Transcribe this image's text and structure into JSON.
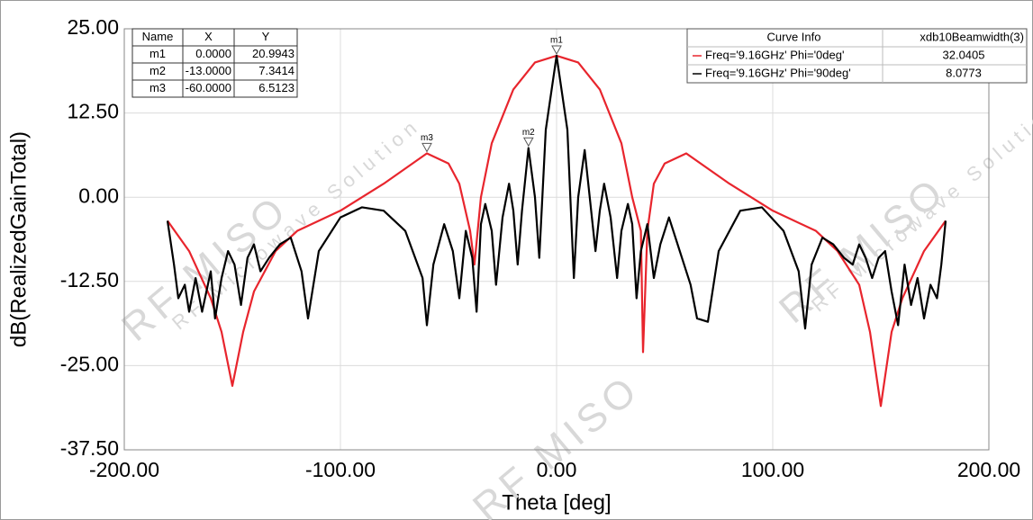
{
  "chart_data": {
    "type": "line",
    "xlabel": "Theta [deg]",
    "ylabel": "dB(RealizedGainTotal)",
    "xlim": [
      -200,
      200
    ],
    "ylim": [
      -37.5,
      25
    ],
    "xticks": [
      {
        "value": -200,
        "label": "-200.00"
      },
      {
        "value": -100,
        "label": "-100.00"
      },
      {
        "value": 0,
        "label": "0.00"
      },
      {
        "value": 100,
        "label": "100.00"
      },
      {
        "value": 200,
        "label": "200.00"
      }
    ],
    "yticks": [
      {
        "value": -37.5,
        "label": "-37.50"
      },
      {
        "value": -25,
        "label": "-25.00"
      },
      {
        "value": -12.5,
        "label": "-12.50"
      },
      {
        "value": 0,
        "label": "0.00"
      },
      {
        "value": 12.5,
        "label": "12.50"
      },
      {
        "value": 25,
        "label": "25.00"
      }
    ],
    "grid": true,
    "legend_header": [
      "Curve Info",
      "xdb10Beamwidth(3)"
    ],
    "series": [
      {
        "name": "Freq='9.16GHz' Phi='0deg'",
        "color": "#e8252d",
        "beamwidth": 32.0405,
        "x": [
          -180,
          -170,
          -160,
          -155,
          -150,
          -145,
          -140,
          -130,
          -120,
          -100,
          -80,
          -60,
          -50,
          -45,
          -40,
          -38,
          -35,
          -30,
          -20,
          -10,
          0,
          10,
          20,
          30,
          35,
          39,
          40,
          42,
          45,
          50,
          60,
          80,
          100,
          120,
          130,
          140,
          145,
          150,
          155,
          160,
          170,
          180
        ],
        "values": [
          -3.5,
          -8,
          -15,
          -20,
          -28,
          -20,
          -14,
          -8,
          -5,
          -2,
          2,
          6.5,
          5,
          2,
          -5,
          -10,
          0,
          8,
          16,
          20,
          21,
          20,
          16,
          8,
          0,
          -5,
          -23,
          -5,
          2,
          5,
          6.5,
          2,
          -2,
          -5,
          -8,
          -13,
          -20,
          -31,
          -20,
          -15,
          -8,
          -3.5
        ]
      },
      {
        "name": "Freq='9.16GHz' Phi='90deg'",
        "color": "#000000",
        "beamwidth": 8.0773,
        "x": [
          -180,
          -177,
          -175,
          -172,
          -170,
          -167,
          -164,
          -160,
          -158,
          -155,
          -152,
          -149,
          -146,
          -143,
          -140,
          -137,
          -133,
          -128,
          -123,
          -118,
          -115,
          -110,
          -100,
          -90,
          -80,
          -70,
          -62,
          -60,
          -57,
          -52,
          -48,
          -45,
          -42,
          -39,
          -37,
          -35,
          -33,
          -30,
          -28,
          -25,
          -22,
          -20,
          -18,
          -16,
          -13,
          -10,
          -8,
          -5,
          0,
          5,
          8,
          10,
          13,
          16,
          18,
          20,
          22,
          25,
          28,
          30,
          33,
          35,
          37,
          39,
          42,
          45,
          48,
          52,
          57,
          62,
          65,
          70,
          75,
          85,
          95,
          105,
          112,
          115,
          118,
          123,
          128,
          133,
          137,
          140,
          143,
          146,
          149,
          152,
          155,
          158,
          161,
          164,
          167,
          170,
          173,
          176,
          178,
          180
        ],
        "values": [
          -3.5,
          -10,
          -15,
          -13,
          -17,
          -12,
          -17,
          -11,
          -18,
          -12,
          -8,
          -10,
          -16,
          -9,
          -7,
          -11,
          -9,
          -7,
          -6,
          -11,
          -18,
          -8,
          -3,
          -1.5,
          -2,
          -5,
          -12,
          -19,
          -10,
          -4,
          -8,
          -15,
          -5,
          -9,
          -17,
          -4,
          -1,
          -5,
          -13,
          -3,
          2,
          -2,
          -10,
          -2,
          7.3,
          0,
          -9,
          10,
          21,
          10,
          -12,
          0,
          7,
          -2,
          -8,
          -2,
          2,
          -3,
          -12,
          -5,
          -1,
          -4,
          -15,
          -8,
          -4,
          -12,
          -7,
          -3,
          -8,
          -13,
          -18,
          -18.5,
          -8,
          -2,
          -1.5,
          -5,
          -11,
          -19.5,
          -10,
          -6,
          -7,
          -9,
          -10,
          -7,
          -9,
          -12,
          -9,
          -8,
          -14,
          -19,
          -10,
          -16,
          -12,
          -18,
          -13,
          -15,
          -10,
          -3.5
        ]
      }
    ],
    "marker_header": [
      "Name",
      "X",
      "Y"
    ],
    "markers": [
      {
        "name": "m1",
        "x": {
          "value": 0,
          "label": "0.0000"
        },
        "y": 20.9943
      },
      {
        "name": "m2",
        "x": {
          "value": -13,
          "label": "-13.0000"
        },
        "y": 7.3414
      },
      {
        "name": "m3",
        "x": {
          "value": -60,
          "label": "-60.0000"
        },
        "y": 6.5123
      }
    ],
    "watermark": [
      "RF MISO",
      "RF Microwave Solution"
    ]
  }
}
